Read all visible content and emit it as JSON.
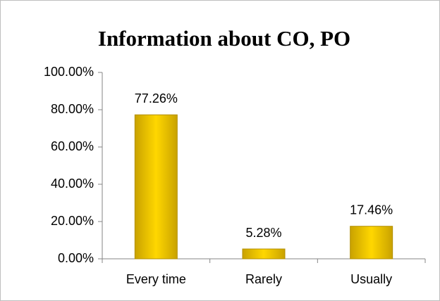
{
  "chart_data": {
    "type": "bar",
    "title": "Information about CO, PO",
    "categories": [
      "Every time",
      "Rarely",
      "Usually"
    ],
    "values": [
      77.26,
      5.28,
      17.46
    ],
    "value_labels": [
      "77.26%",
      "5.28%",
      "17.46%"
    ],
    "color": "#ffd700",
    "ylim": [
      0,
      100
    ],
    "yticks": [
      {
        "value": 0,
        "label": "0.00%"
      },
      {
        "value": 20,
        "label": "20.00%"
      },
      {
        "value": 40,
        "label": "40.00%"
      },
      {
        "value": 60,
        "label": "60.00%"
      },
      {
        "value": 80,
        "label": "80.00%"
      },
      {
        "value": 100,
        "label": "100.00%"
      }
    ],
    "grid": false
  }
}
